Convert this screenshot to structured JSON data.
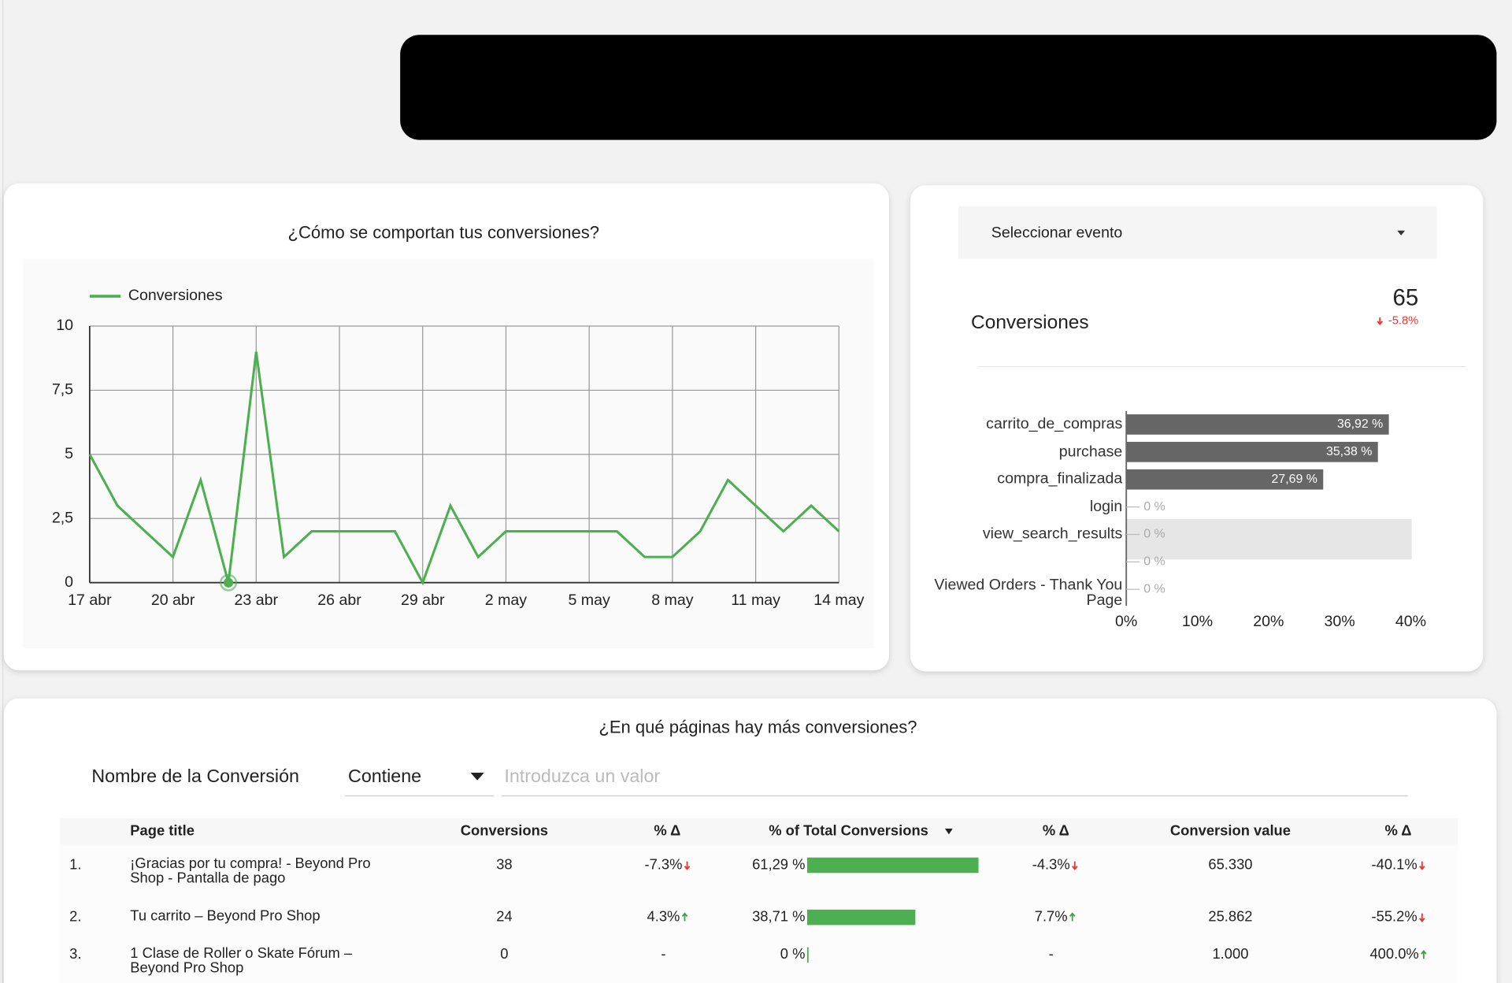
{
  "chart_data": [
    {
      "type": "line",
      "title": "¿Cómo se comportan tus conversiones?",
      "categories": [
        "17 abr",
        null,
        null,
        "20 abr",
        null,
        null,
        "23 abr",
        null,
        null,
        "26 abr",
        null,
        null,
        "29 abr",
        null,
        null,
        "2 may",
        null,
        null,
        "5 may",
        null,
        null,
        "8 may",
        null,
        null,
        "11 may",
        null,
        null,
        "14 may"
      ],
      "series": [
        {
          "name": "Conversiones",
          "color": "#4caf50",
          "values": [
            5,
            3,
            2,
            1,
            4,
            0,
            9,
            1,
            2,
            2,
            2,
            2,
            0,
            3,
            1,
            2,
            2,
            2,
            2,
            2,
            1,
            1,
            2,
            4,
            3,
            2,
            3,
            2
          ]
        }
      ],
      "ylim": [
        0,
        10
      ],
      "yticks": [
        0,
        {
          "value": 2.5,
          "label": "2,5"
        },
        5,
        {
          "value": 7.5,
          "label": "7,5"
        },
        10
      ],
      "grid": true,
      "legend": "top-left"
    },
    {
      "type": "hbar",
      "categories": [
        "carrito_de_compras",
        "purchase",
        "compra_finalizada",
        "login",
        "view_search_results",
        null,
        "Viewed Orders - Thank You Page"
      ],
      "values": [
        36.92,
        35.38,
        27.69,
        0,
        0,
        0,
        0
      ],
      "value_labels": [
        "36,92 %",
        "35,38 %",
        "27,69 %",
        "0 %",
        "0 %",
        "0 %",
        "0 %"
      ],
      "color": "#666666",
      "xlim": [
        0,
        40
      ],
      "xticks": [
        {
          "value": 0,
          "label": "0%"
        },
        {
          "value": 10,
          "label": "10%"
        },
        {
          "value": 20,
          "label": "20%"
        },
        {
          "value": 30,
          "label": "30%"
        },
        {
          "value": 40,
          "label": "40%"
        }
      ]
    }
  ],
  "event_selector": {
    "label": "Seleccionar evento"
  },
  "scorecard": {
    "label": "Conversiones",
    "value": 65,
    "delta": "-5.8%"
  },
  "table_title": "¿En qué páginas hay más conversiones?",
  "filter": {
    "field": "Nombre de la Conversión",
    "operator": "Contiene",
    "placeholder": "Introduzca un valor"
  },
  "table": {
    "columns": [
      "Page title",
      "Conversions",
      "% Δ",
      "% of Total Conversions",
      "% Δ",
      "Conversion value",
      "% Δ"
    ],
    "rows": [
      [
        "1.",
        "¡Gracias por tu compra! - Beyond Pro Shop - Pantalla de pago",
        38,
        "-7.3%",
        "61,29 %",
        "-4.3%",
        "65.330",
        "-40.1%"
      ],
      [
        "2.",
        "Tu carrito – Beyond Pro Shop",
        24,
        "4.3%",
        "38,71 %",
        "7.7%",
        "25.862",
        "-55.2%"
      ],
      [
        "3.",
        "1 Clase de Roller o Skate Fórum – Beyond Pro Shop",
        0,
        "-",
        "0 %",
        "-",
        "1.000",
        "400.0%"
      ]
    ],
    "share_values": [
      61.29,
      38.71,
      0
    ],
    "bar_color": "#4caf50"
  }
}
